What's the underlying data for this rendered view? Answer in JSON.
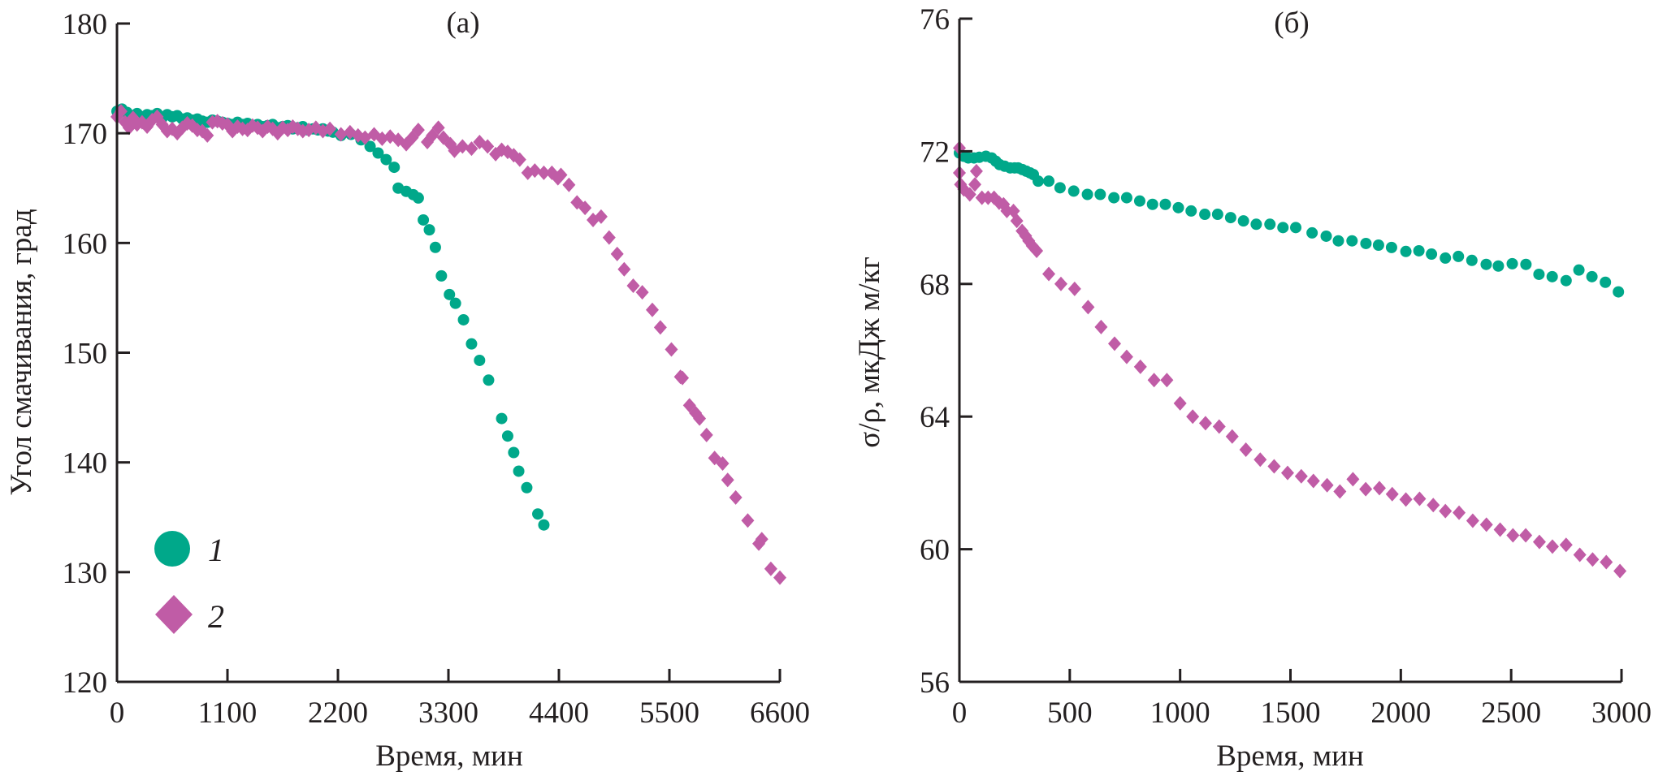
{
  "chart_data": [
    {
      "type": "scatter",
      "panel_label": "(а)",
      "title": "",
      "xlabel": "Время, мин",
      "ylabel": "Угол смачивания, град",
      "xlim": [
        0,
        6600
      ],
      "ylim": [
        120,
        180
      ],
      "xticks": [
        0,
        1100,
        2200,
        3300,
        4400,
        5500,
        6600
      ],
      "xtick_labels": [
        "0",
        "1100",
        "2200",
        "3300",
        "4400",
        "5500",
        "6600"
      ],
      "yticks": [
        120,
        130,
        140,
        150,
        160,
        170,
        180
      ],
      "ytick_labels": [
        "120",
        "130",
        "140",
        "150",
        "160",
        "170",
        "180"
      ],
      "grid": false,
      "legend": {
        "placement": "bottom-left",
        "entries": [
          {
            "label": "1",
            "marker": "circle",
            "color": "#00a88a"
          },
          {
            "label": "2",
            "marker": "diamond",
            "color": "#c05ca6"
          }
        ]
      },
      "series": [
        {
          "name": "1",
          "marker": "circle",
          "color": "#00a88a",
          "x": [
            0,
            50,
            100,
            150,
            200,
            250,
            300,
            350,
            400,
            450,
            500,
            550,
            600,
            650,
            700,
            750,
            800,
            850,
            900,
            950,
            1000,
            1050,
            1100,
            1150,
            1200,
            1250,
            1300,
            1350,
            1400,
            1450,
            1500,
            1550,
            1600,
            1650,
            1700,
            1750,
            1800,
            1850,
            1900,
            1950,
            2000,
            2050,
            2100,
            2150,
            2230,
            2330,
            2430,
            2520,
            2600,
            2680,
            2760,
            2800,
            2880,
            2950,
            3000,
            3050,
            3110,
            3170,
            3230,
            3310,
            3370,
            3450,
            3530,
            3610,
            3700,
            3830,
            3890,
            3950,
            4000,
            4080,
            4190,
            4250
          ],
          "y": [
            172.0,
            172.2,
            171.9,
            171.6,
            171.8,
            171.5,
            171.7,
            171.6,
            171.8,
            171.4,
            171.7,
            171.5,
            171.6,
            171.3,
            171.4,
            171.2,
            171.3,
            171.1,
            171.0,
            171.2,
            171.1,
            171.0,
            170.9,
            170.8,
            171.0,
            170.8,
            170.9,
            170.7,
            170.8,
            170.6,
            170.7,
            170.8,
            170.5,
            170.6,
            170.7,
            170.4,
            170.5,
            170.6,
            170.3,
            170.4,
            170.3,
            170.4,
            170.2,
            170.1,
            169.8,
            169.9,
            169.4,
            168.8,
            168.2,
            167.6,
            166.9,
            165.0,
            164.7,
            164.4,
            164.1,
            162.1,
            161.2,
            159.6,
            157.0,
            155.3,
            154.5,
            153.0,
            150.8,
            149.3,
            147.5,
            144.0,
            142.4,
            140.9,
            139.2,
            137.7,
            135.3,
            134.3
          ]
        },
        {
          "name": "2",
          "marker": "diamond",
          "color": "#c05ca6",
          "x": [
            0,
            40,
            80,
            120,
            160,
            200,
            250,
            300,
            350,
            400,
            450,
            500,
            550,
            600,
            650,
            700,
            750,
            800,
            850,
            900,
            950,
            1000,
            1050,
            1100,
            1150,
            1200,
            1250,
            1300,
            1350,
            1400,
            1450,
            1500,
            1550,
            1600,
            1650,
            1700,
            1750,
            1800,
            1850,
            1910,
            1980,
            2050,
            2120,
            2230,
            2320,
            2400,
            2470,
            2560,
            2640,
            2720,
            2800,
            2880,
            2940,
            3000,
            3090,
            3140,
            3200,
            3250,
            3320,
            3360,
            3440,
            3530,
            3610,
            3690,
            3770,
            3830,
            3890,
            3950,
            4010,
            4090,
            4160,
            4250,
            4330,
            4390,
            4420,
            4500,
            4580,
            4660,
            4740,
            4820,
            4900,
            4980,
            5050,
            5140,
            5230,
            5330,
            5410,
            5520,
            5610,
            5630,
            5700,
            5760,
            5800,
            5870,
            5950,
            6030,
            6080,
            6160,
            6280,
            6390,
            6420,
            6510,
            6600
          ],
          "y": [
            171.5,
            172.0,
            171.0,
            170.5,
            171.4,
            170.8,
            171.0,
            170.6,
            171.2,
            171.5,
            170.8,
            170.2,
            170.4,
            170.0,
            170.5,
            170.9,
            170.7,
            170.3,
            170.2,
            169.8,
            171.0,
            171.1,
            170.9,
            170.8,
            170.2,
            170.6,
            170.4,
            170.3,
            170.7,
            170.5,
            170.2,
            170.6,
            170.4,
            170.0,
            170.5,
            170.3,
            170.6,
            170.4,
            170.2,
            170.3,
            170.5,
            170.2,
            170.4,
            169.9,
            170.1,
            169.8,
            169.6,
            169.9,
            169.5,
            169.7,
            169.4,
            169.0,
            169.6,
            170.3,
            169.2,
            169.8,
            170.5,
            169.6,
            169.0,
            168.4,
            168.8,
            168.6,
            169.2,
            168.8,
            168.1,
            168.5,
            168.3,
            168.0,
            167.6,
            166.4,
            166.6,
            166.4,
            166.4,
            165.9,
            166.2,
            165.3,
            163.7,
            163.2,
            162.1,
            162.4,
            160.5,
            159.0,
            157.6,
            156.1,
            155.5,
            153.9,
            152.3,
            150.3,
            147.8,
            147.7,
            145.2,
            144.5,
            144.0,
            142.5,
            140.4,
            139.9,
            138.4,
            136.8,
            134.7,
            132.6,
            133.0,
            130.3,
            129.5
          ]
        }
      ]
    },
    {
      "type": "scatter",
      "panel_label": "(б)",
      "title": "",
      "xlabel": "Время, мин",
      "ylabel": "σ/ρ, мкДж м/кг",
      "xlim": [
        0,
        3000
      ],
      "ylim": [
        56,
        76
      ],
      "xticks": [
        0,
        500,
        1000,
        1500,
        2000,
        2500,
        3000
      ],
      "xtick_labels": [
        "0",
        "500",
        "1000",
        "1500",
        "2000",
        "2500",
        "3000"
      ],
      "yticks": [
        56,
        60,
        64,
        68,
        72,
        76
      ],
      "ytick_labels": [
        "56",
        "60",
        "64",
        "68",
        "72",
        "76"
      ],
      "grid": false,
      "series": [
        {
          "name": "1",
          "marker": "circle",
          "color": "#00a88a",
          "x": [
            0,
            20,
            40,
            66,
            90,
            120,
            146,
            165,
            182,
            205,
            230,
            250,
            266,
            285,
            303,
            320,
            335,
            357,
            405,
            456,
            518,
            580,
            638,
            700,
            758,
            817,
            875,
            933,
            992,
            1050,
            1112,
            1170,
            1229,
            1287,
            1345,
            1407,
            1466,
            1524,
            1598,
            1662,
            1717,
            1779,
            1842,
            1899,
            1958,
            2023,
            2082,
            2139,
            2202,
            2261,
            2322,
            2387,
            2442,
            2505,
            2567,
            2626,
            2686,
            2749,
            2807,
            2866,
            2927,
            2986
          ],
          "y": [
            71.95,
            71.85,
            71.8,
            71.8,
            71.82,
            71.85,
            71.8,
            71.7,
            71.6,
            71.55,
            71.5,
            71.5,
            71.5,
            71.45,
            71.4,
            71.35,
            71.3,
            71.1,
            71.1,
            70.9,
            70.8,
            70.7,
            70.7,
            70.6,
            70.6,
            70.5,
            70.4,
            70.4,
            70.3,
            70.2,
            70.1,
            70.1,
            70.0,
            69.9,
            69.8,
            69.8,
            69.7,
            69.7,
            69.54,
            69.44,
            69.3,
            69.3,
            69.22,
            69.17,
            69.1,
            68.98,
            69.0,
            68.9,
            68.78,
            68.83,
            68.71,
            68.59,
            68.54,
            68.61,
            68.59,
            68.29,
            68.22,
            68.1,
            68.42,
            68.22,
            68.05,
            67.76
          ]
        },
        {
          "name": "2",
          "marker": "diamond",
          "color": "#c05ca6",
          "x": [
            0,
            0,
            5,
            20,
            47,
            70,
            77,
            102,
            130,
            157,
            180,
            200,
            215,
            245,
            260,
            284,
            300,
            314,
            330,
            350,
            405,
            460,
            522,
            583,
            642,
            703,
            758,
            820,
            882,
            940,
            1000,
            1057,
            1115,
            1177,
            1236,
            1298,
            1363,
            1426,
            1487,
            1549,
            1604,
            1666,
            1724,
            1783,
            1841,
            1903,
            1961,
            2023,
            2085,
            2147,
            2202,
            2264,
            2326,
            2388,
            2450,
            2508,
            2566,
            2628,
            2687,
            2749,
            2811,
            2869,
            2931,
            2993
          ],
          "y": [
            72.1,
            71.35,
            71.0,
            70.85,
            70.7,
            71.0,
            71.4,
            70.6,
            70.6,
            70.6,
            70.45,
            70.4,
            70.2,
            70.2,
            69.9,
            69.6,
            69.45,
            69.3,
            69.15,
            69.0,
            68.3,
            68.0,
            67.85,
            67.3,
            66.7,
            66.2,
            65.8,
            65.5,
            65.1,
            65.1,
            64.4,
            64.0,
            63.8,
            63.7,
            63.4,
            63.0,
            62.7,
            62.5,
            62.3,
            62.2,
            62.06,
            61.93,
            61.74,
            62.11,
            61.81,
            61.84,
            61.66,
            61.5,
            61.52,
            61.33,
            61.15,
            61.1,
            60.86,
            60.74,
            60.59,
            60.42,
            60.42,
            60.22,
            60.08,
            60.13,
            59.83,
            59.69,
            59.61,
            59.34
          ]
        }
      ]
    }
  ]
}
